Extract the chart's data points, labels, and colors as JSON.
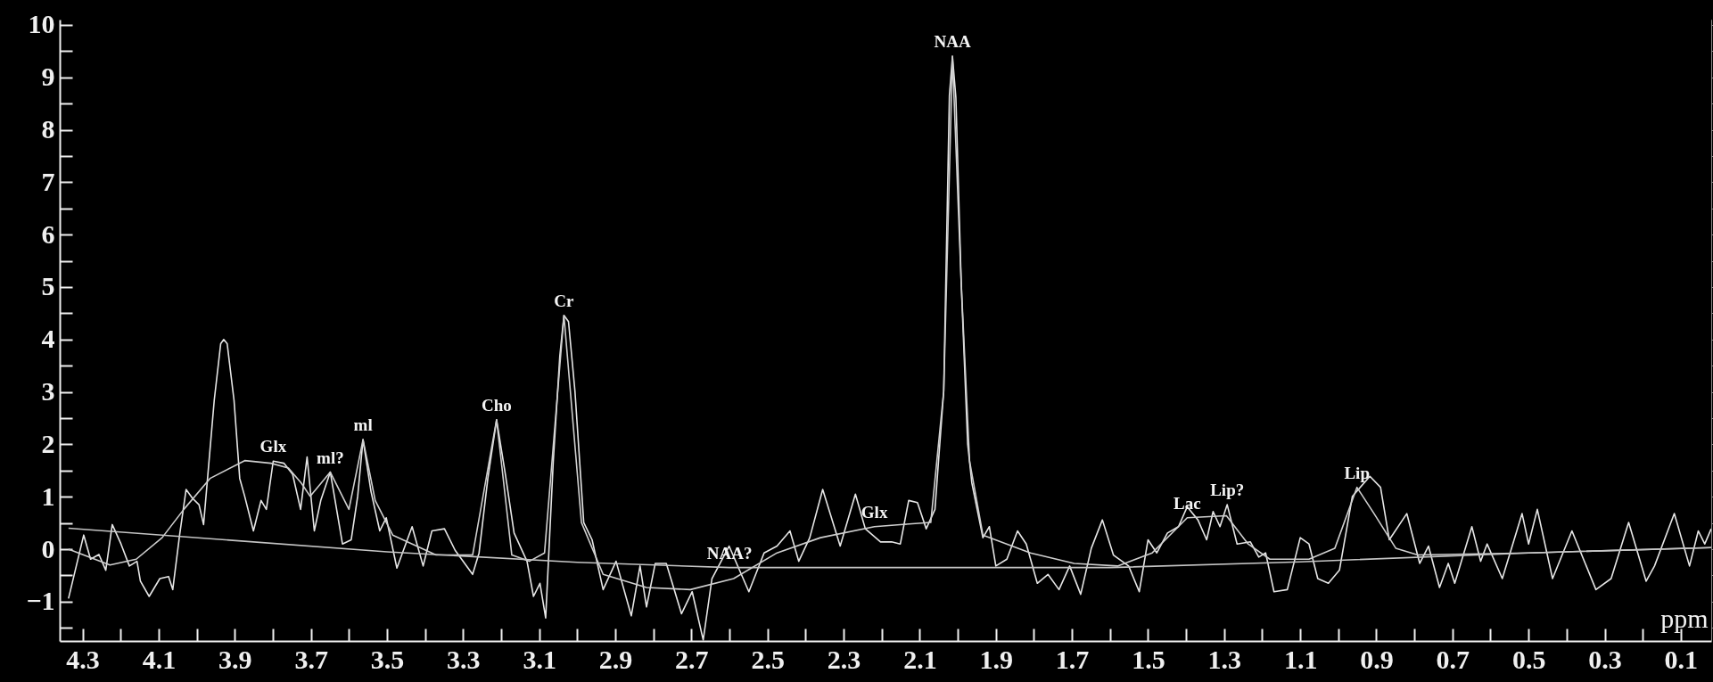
{
  "chart_data": {
    "type": "line",
    "xlabel": "ppm",
    "xlim": [
      4.36,
      0.02
    ],
    "ylim": [
      -1.75,
      10.1
    ],
    "xticks": [
      4.3,
      {
        "value": 4.2,
        "label": null
      },
      4.1,
      {
        "value": 4.0,
        "label": null
      },
      3.9,
      {
        "value": 3.8,
        "label": null
      },
      3.7,
      {
        "value": 3.6,
        "label": null
      },
      3.5,
      {
        "value": 3.4,
        "label": null
      },
      3.3,
      {
        "value": 3.2,
        "label": null
      },
      3.1,
      {
        "value": 3.0,
        "label": null
      },
      2.9,
      {
        "value": 2.8,
        "label": null
      },
      2.7,
      {
        "value": 2.6,
        "label": null
      },
      2.5,
      {
        "value": 2.4,
        "label": null
      },
      2.3,
      {
        "value": 2.2,
        "label": null
      },
      2.1,
      {
        "value": 2.0,
        "label": null
      },
      1.9,
      {
        "value": 1.8,
        "label": null
      },
      1.7,
      {
        "value": 1.6,
        "label": null
      },
      1.5,
      {
        "value": 1.4,
        "label": null
      },
      1.3,
      {
        "value": 1.2,
        "label": null
      },
      1.1,
      {
        "value": 1.0,
        "label": null
      },
      0.9,
      {
        "value": 0.8,
        "label": null
      },
      0.7,
      {
        "value": 0.6,
        "label": null
      },
      0.5,
      {
        "value": 0.4,
        "label": null
      },
      0.3,
      {
        "value": 0.2,
        "label": null
      },
      0.1
    ],
    "yticks": [
      10,
      {
        "value": 9.5,
        "label": null
      },
      9,
      {
        "value": 8.5,
        "label": null
      },
      8,
      {
        "value": 7.5,
        "label": null
      },
      7,
      {
        "value": 6.5,
        "label": null
      },
      6,
      {
        "value": 5.5,
        "label": null
      },
      5,
      {
        "value": 4.5,
        "label": null
      },
      4,
      {
        "value": 3.5,
        "label": null
      },
      3,
      {
        "value": 2.5,
        "label": null
      },
      2,
      {
        "value": 1.5,
        "label": null
      },
      1,
      {
        "value": 0.5,
        "label": null
      },
      0,
      {
        "value": -0.5,
        "label": null
      },
      -1,
      {
        "value": -1.5,
        "label": null
      }
    ],
    "series": [
      {
        "color": "#e6e6e6",
        "x": [
          4.337,
          4.297,
          4.279,
          4.257,
          4.239,
          4.222,
          4.199,
          4.177,
          4.157,
          4.148,
          4.125,
          4.097,
          4.074,
          4.063,
          4.045,
          4.028,
          4.011,
          3.994,
          3.982,
          3.954,
          3.937,
          3.929,
          3.92,
          3.902,
          3.887,
          3.874,
          3.851,
          3.831,
          3.817,
          3.799,
          3.771,
          3.748,
          3.727,
          3.71,
          3.691,
          3.674,
          3.649,
          3.617,
          3.594,
          3.577,
          3.563,
          3.542,
          3.519,
          3.502,
          3.474,
          3.434,
          3.405,
          3.382,
          3.349,
          3.321,
          3.275,
          3.258,
          3.235,
          3.212,
          3.189,
          3.166,
          3.132,
          3.115,
          3.098,
          3.083,
          3.063,
          3.046,
          3.035,
          3.023,
          3.006,
          2.983,
          2.961,
          2.932,
          2.898,
          2.858,
          2.835,
          2.818,
          2.795,
          2.766,
          2.726,
          2.698,
          2.669,
          2.646,
          2.601,
          2.549,
          2.509,
          2.475,
          2.441,
          2.418,
          2.389,
          2.355,
          2.309,
          2.269,
          2.243,
          2.203,
          2.174,
          2.151,
          2.129,
          2.106,
          2.083,
          2.06,
          2.037,
          2.022,
          2.014,
          2.005,
          1.991,
          1.974,
          1.963,
          1.934,
          1.917,
          1.9,
          1.871,
          1.843,
          1.82,
          1.791,
          1.763,
          1.734,
          1.706,
          1.677,
          1.649,
          1.62,
          1.591,
          1.551,
          1.523,
          1.5,
          1.477,
          1.449,
          1.42,
          1.397,
          1.369,
          1.346,
          1.329,
          1.311,
          1.292,
          1.266,
          1.231,
          1.209,
          1.191,
          1.169,
          1.134,
          1.1,
          1.077,
          1.054,
          1.026,
          0.997,
          0.963,
          0.917,
          0.889,
          0.866,
          0.82,
          0.786,
          0.763,
          0.734,
          0.711,
          0.694,
          0.649,
          0.626,
          0.609,
          0.569,
          0.517,
          0.5,
          0.477,
          0.437,
          0.386,
          0.323,
          0.283,
          0.237,
          0.191,
          0.169,
          0.117,
          0.077,
          0.054,
          0.037,
          0.02
        ],
        "values": [
          -0.94,
          0.27,
          -0.19,
          -0.1,
          -0.4,
          0.47,
          0.1,
          -0.32,
          -0.23,
          -0.61,
          -0.9,
          -0.56,
          -0.52,
          -0.77,
          0.27,
          1.14,
          0.97,
          0.85,
          0.47,
          2.84,
          3.92,
          4.0,
          3.92,
          2.84,
          1.35,
          1.01,
          0.35,
          0.93,
          0.76,
          1.68,
          1.64,
          1.43,
          0.76,
          1.76,
          0.35,
          0.93,
          1.47,
          0.1,
          0.18,
          1.01,
          2.09,
          1.1,
          0.35,
          0.6,
          -0.36,
          0.43,
          -0.32,
          0.35,
          0.39,
          -0.02,
          -0.48,
          -0.07,
          1.35,
          2.47,
          1.43,
          0.31,
          -0.23,
          -0.9,
          -0.65,
          -1.31,
          1.68,
          3.67,
          4.46,
          4.34,
          3.01,
          0.51,
          0.18,
          -0.77,
          -0.23,
          -1.27,
          -0.32,
          -1.1,
          -0.27,
          -0.27,
          -1.23,
          -0.81,
          -1.73,
          -0.56,
          0.06,
          -0.81,
          -0.07,
          0.06,
          0.35,
          -0.23,
          0.22,
          1.14,
          0.06,
          1.05,
          0.39,
          0.14,
          0.14,
          0.1,
          0.93,
          0.89,
          0.39,
          0.76,
          3.01,
          8.65,
          9.4,
          8.61,
          5.08,
          2.01,
          1.26,
          0.22,
          0.43,
          -0.32,
          -0.19,
          0.35,
          0.1,
          -0.65,
          -0.48,
          -0.77,
          -0.32,
          -0.86,
          0.02,
          0.56,
          -0.11,
          -0.32,
          -0.81,
          0.18,
          -0.07,
          0.31,
          0.43,
          0.81,
          0.56,
          0.18,
          0.72,
          0.43,
          0.85,
          0.1,
          0.14,
          -0.15,
          -0.07,
          -0.81,
          -0.77,
          0.22,
          0.1,
          -0.56,
          -0.65,
          -0.4,
          1.01,
          1.39,
          1.18,
          0.18,
          0.68,
          -0.27,
          0.06,
          -0.73,
          -0.27,
          -0.65,
          0.43,
          -0.23,
          0.1,
          -0.56,
          0.68,
          0.1,
          0.76,
          -0.56,
          0.35,
          -0.77,
          -0.56,
          0.51,
          -0.61,
          -0.32,
          0.68,
          -0.32,
          0.35,
          0.1,
          0.39
        ]
      },
      {
        "color": "#cfcfcf",
        "x": [
          4.337,
          4.228,
          4.159,
          4.091,
          4.034,
          3.965,
          3.874,
          3.805,
          3.759,
          3.725,
          3.702,
          3.649,
          3.6,
          3.563,
          3.531,
          3.485,
          3.371,
          3.275,
          3.212,
          3.172,
          3.126,
          3.086,
          3.035,
          2.989,
          2.932,
          2.818,
          2.703,
          2.589,
          2.475,
          2.361,
          2.219,
          2.151,
          2.071,
          2.037,
          2.014,
          1.991,
          1.969,
          1.934,
          1.809,
          1.694,
          1.58,
          1.489,
          1.397,
          1.294,
          1.237,
          1.18,
          1.077,
          1.009,
          0.951,
          0.906,
          0.849,
          0.791,
          0.5,
          0.02
        ],
        "values": [
          0.0,
          -0.3,
          -0.19,
          0.22,
          0.76,
          1.35,
          1.69,
          1.64,
          1.55,
          1.26,
          1.01,
          1.47,
          0.76,
          2.09,
          0.93,
          0.27,
          -0.11,
          -0.11,
          2.47,
          -0.11,
          -0.23,
          -0.07,
          4.46,
          0.51,
          -0.48,
          -0.73,
          -0.77,
          -0.56,
          -0.07,
          0.22,
          0.43,
          0.47,
          0.51,
          3.01,
          9.4,
          5.08,
          1.68,
          0.27,
          -0.07,
          -0.27,
          -0.32,
          -0.07,
          0.6,
          0.64,
          0.1,
          -0.19,
          -0.19,
          0.02,
          1.18,
          0.68,
          0.02,
          -0.11,
          -0.07,
          0.03
        ]
      },
      {
        "color": "#c4c4c4",
        "x": [
          4.337,
          3.5,
          3.0,
          2.6,
          1.6,
          1.1,
          0.5,
          0.02
        ],
        "values": [
          0.4,
          -0.05,
          -0.25,
          -0.35,
          -0.35,
          -0.24,
          -0.07,
          0.03
        ]
      }
    ],
    "annotations": [
      {
        "text": "Glx",
        "x": 3.799,
        "y": 1.68
      },
      {
        "text": "ml?",
        "x": 3.649,
        "y": 1.47
      },
      {
        "text": "ml",
        "x": 3.563,
        "y": 2.09
      },
      {
        "text": "Cho",
        "x": 3.212,
        "y": 2.47
      },
      {
        "text": "Cr",
        "x": 3.035,
        "y": 4.46
      },
      {
        "text": "NAA?",
        "x": 2.6,
        "y": -0.35
      },
      {
        "text": "Glx",
        "x": 2.219,
        "y": 0.43
      },
      {
        "text": "NAA",
        "x": 2.014,
        "y": 9.4
      },
      {
        "text": "Lac",
        "x": 1.397,
        "y": 0.6
      },
      {
        "text": "Lip?",
        "x": 1.292,
        "y": 0.85
      },
      {
        "text": "Lip",
        "x": 0.951,
        "y": 1.18
      }
    ]
  }
}
